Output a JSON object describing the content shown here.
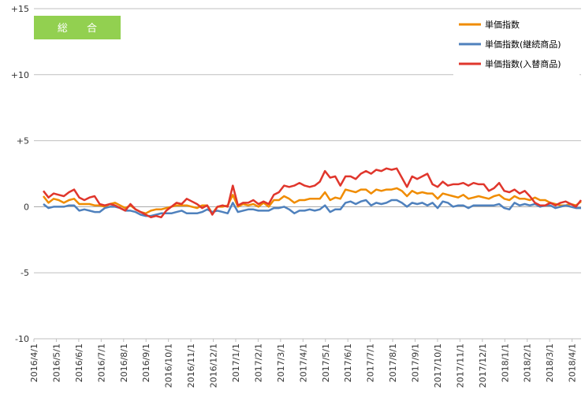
{
  "badge": {
    "label": "総 合",
    "color": "#92d050"
  },
  "chart_data": {
    "type": "line",
    "title": "総 合",
    "ylim": [
      -10,
      15
    ],
    "y_ticks": [
      -10,
      -5,
      0,
      5,
      10,
      15
    ],
    "y_tick_labels": [
      "-10",
      "-5",
      "0",
      "+5",
      "+10",
      "+15"
    ],
    "grid": "horizontal",
    "legend_position": "top-right",
    "x_tick_labels": [
      "2016/4/1",
      "2016/5/1",
      "2016/6/1",
      "2016/7/1",
      "2016/8/1",
      "2016/9/1",
      "2016/10/1",
      "2016/11/1",
      "2016/12/1",
      "2017/1/1",
      "2017/2/1",
      "2017/3/1",
      "2017/4/1",
      "2017/5/1",
      "2017/6/1",
      "2017/7/1",
      "2017/8/1",
      "2017/9/1",
      "2017/10/1",
      "2017/11/1",
      "2017/12/1",
      "2018/1/1",
      "2018/2/1",
      "2018/3/1",
      "2018/4/1"
    ],
    "series": [
      {
        "name": "単価指数",
        "color": "#f08c00",
        "values": [
          0.8,
          0.3,
          0.6,
          0.5,
          0.3,
          0.5,
          0.6,
          0.2,
          0.2,
          0.2,
          0.1,
          0.1,
          0.0,
          0.2,
          0.3,
          0.1,
          -0.1,
          0.1,
          -0.2,
          -0.4,
          -0.5,
          -0.3,
          -0.2,
          -0.2,
          -0.1,
          0.0,
          0.1,
          0.1,
          0.1,
          0.0,
          -0.1,
          0.1,
          0.1,
          -0.5,
          0.0,
          0.0,
          0.1,
          0.9,
          0.0,
          0.2,
          0.1,
          0.2,
          0.0,
          0.3,
          0.0,
          0.5,
          0.5,
          0.8,
          0.6,
          0.3,
          0.5,
          0.5,
          0.6,
          0.6,
          0.6,
          1.1,
          0.5,
          0.7,
          0.6,
          1.3,
          1.2,
          1.1,
          1.3,
          1.3,
          1.0,
          1.3,
          1.2,
          1.3,
          1.3,
          1.4,
          1.2,
          0.8,
          1.2,
          1.0,
          1.1,
          1.0,
          1.0,
          0.6,
          1.0,
          0.9,
          0.8,
          0.7,
          0.9,
          0.6,
          0.7,
          0.8,
          0.7,
          0.6,
          0.8,
          0.9,
          0.6,
          0.5,
          0.8,
          0.6,
          0.6,
          0.5,
          0.7,
          0.5,
          0.5,
          0.3,
          0.2,
          0.1,
          0.1,
          0.2,
          0.1,
          0.4
        ],
        "labels_from": "x_tick_labels"
      },
      {
        "name": "単価指数(継続商品)",
        "color": "#4f81bd",
        "values": [
          0.2,
          -0.1,
          0.0,
          0.0,
          0.0,
          0.1,
          0.1,
          -0.3,
          -0.2,
          -0.3,
          -0.4,
          -0.4,
          -0.1,
          0.0,
          0.0,
          -0.1,
          -0.3,
          -0.3,
          -0.4,
          -0.6,
          -0.7,
          -0.7,
          -0.6,
          -0.5,
          -0.5,
          -0.5,
          -0.4,
          -0.3,
          -0.5,
          -0.5,
          -0.5,
          -0.4,
          -0.2,
          -0.4,
          -0.3,
          -0.4,
          -0.5,
          0.3,
          -0.4,
          -0.3,
          -0.2,
          -0.2,
          -0.3,
          -0.3,
          -0.3,
          -0.1,
          -0.1,
          0.0,
          -0.2,
          -0.5,
          -0.3,
          -0.3,
          -0.2,
          -0.3,
          -0.2,
          0.1,
          -0.4,
          -0.2,
          -0.2,
          0.3,
          0.4,
          0.2,
          0.4,
          0.5,
          0.1,
          0.3,
          0.2,
          0.3,
          0.5,
          0.5,
          0.3,
          0.0,
          0.3,
          0.2,
          0.3,
          0.1,
          0.3,
          -0.1,
          0.4,
          0.3,
          0.0,
          0.1,
          0.1,
          -0.1,
          0.1,
          0.1,
          0.1,
          0.1,
          0.1,
          0.2,
          -0.1,
          -0.2,
          0.3,
          0.1,
          0.2,
          0.1,
          0.2,
          0.0,
          0.1,
          0.1,
          -0.1,
          0.0,
          0.1,
          0.0,
          -0.1,
          -0.1
        ],
        "labels_from": "x_tick_labels"
      },
      {
        "name": "単価指数(入替商品)",
        "color": "#e0362c",
        "values": [
          1.2,
          0.7,
          1.0,
          0.9,
          0.8,
          1.1,
          1.3,
          0.7,
          0.5,
          0.7,
          0.8,
          0.2,
          0.1,
          0.2,
          0.1,
          -0.1,
          -0.3,
          0.2,
          -0.2,
          -0.4,
          -0.6,
          -0.8,
          -0.7,
          -0.8,
          -0.3,
          0.0,
          0.3,
          0.2,
          0.6,
          0.4,
          0.2,
          -0.1,
          0.1,
          -0.6,
          0.0,
          0.1,
          0.0,
          1.6,
          0.1,
          0.3,
          0.3,
          0.5,
          0.2,
          0.4,
          0.2,
          0.9,
          1.1,
          1.6,
          1.5,
          1.6,
          1.8,
          1.6,
          1.5,
          1.6,
          1.9,
          2.7,
          2.2,
          2.3,
          1.6,
          2.3,
          2.3,
          2.1,
          2.5,
          2.7,
          2.5,
          2.8,
          2.7,
          2.9,
          2.8,
          2.9,
          2.2,
          1.5,
          2.3,
          2.1,
          2.3,
          2.5,
          1.7,
          1.5,
          1.9,
          1.6,
          1.7,
          1.7,
          1.8,
          1.6,
          1.8,
          1.7,
          1.7,
          1.2,
          1.4,
          1.8,
          1.2,
          1.1,
          1.3,
          1.0,
          1.2,
          0.8,
          0.3,
          0.1,
          0.1,
          0.3,
          0.1,
          0.3,
          0.4,
          0.2,
          0.0,
          0.5
        ],
        "labels_from": "x_tick_labels"
      }
    ]
  }
}
